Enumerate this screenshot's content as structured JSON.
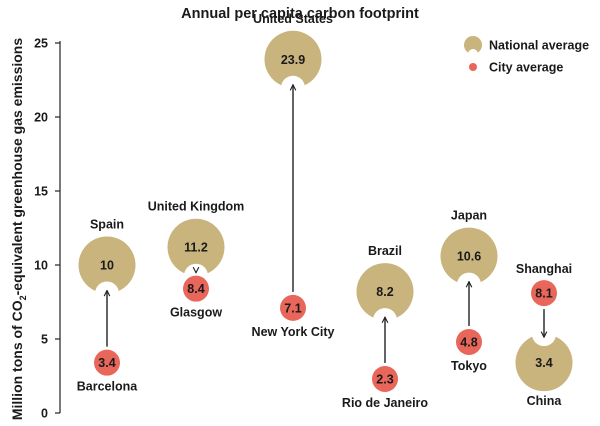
{
  "chart_data": {
    "type": "dot-arrow",
    "title": "Annual per capita carbon footprint",
    "ylabel_parts": [
      "Million tons of CO",
      "2",
      "-equivalent greenhouse gas emissions"
    ],
    "ylim": [
      0,
      25
    ],
    "yticks": [
      0,
      5,
      10,
      15,
      20,
      25
    ],
    "legend": {
      "national": "National average",
      "city": "City average"
    },
    "colors": {
      "national": "#c8b47c",
      "city": "#e8665a",
      "axis": "#222222",
      "text": "#1a1a1a"
    },
    "pairs": [
      {
        "country": "Spain",
        "national": 10,
        "national_label": "10",
        "city": "Barcelona",
        "city_value": 3.4,
        "city_label": "3.4"
      },
      {
        "country": "United Kingdom",
        "national": 11.2,
        "national_label": "11.2",
        "city": "Glasgow",
        "city_value": 8.4,
        "city_label": "8.4"
      },
      {
        "country": "United States",
        "national": 23.9,
        "national_label": "23.9",
        "city": "New York City",
        "city_value": 7.1,
        "city_label": "7.1"
      },
      {
        "country": "Brazil",
        "national": 8.2,
        "national_label": "8.2",
        "city": "Rio de Janeiro",
        "city_value": 2.3,
        "city_label": "2.3"
      },
      {
        "country": "Japan",
        "national": 10.6,
        "national_label": "10.6",
        "city": "Tokyo",
        "city_value": 4.8,
        "city_label": "4.8"
      },
      {
        "country": "China",
        "national": 3.4,
        "national_label": "3.4",
        "city": "Shanghai",
        "city_value": 8.1,
        "city_label": "8.1"
      }
    ]
  }
}
